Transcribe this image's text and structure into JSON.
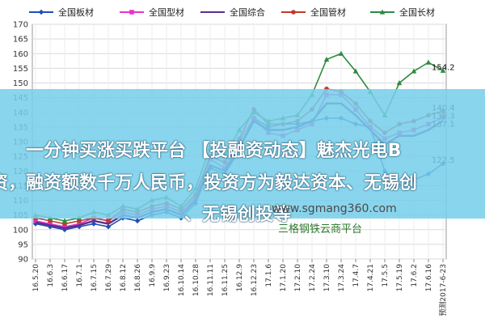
{
  "chart_data": {
    "type": "line",
    "ylim": [
      90,
      170
    ],
    "yticks": [
      90,
      95,
      100,
      105,
      110,
      115,
      120,
      125,
      130,
      135,
      140,
      145,
      150,
      155,
      160,
      165,
      170
    ],
    "xlabels": [
      "16.5.20",
      "16.6.3",
      "16.6.17",
      "16.7.1",
      "16.7.15",
      "16.7.29",
      "16.8.12",
      "16.8.26",
      "16.9.9",
      "16.9.23",
      "16.10.14",
      "16.10.28",
      "16.11.11",
      "16.11.25",
      "16.12.9",
      "16.12.23",
      "17.1.6",
      "17.1.20",
      "17.2.10",
      "17.2.24",
      "17.3.10",
      "17.3.24",
      "17.4.7",
      "17.4.21",
      "17.5.5",
      "17.5.19",
      "17.6.2",
      "17.6.16",
      "预测2017-6-23"
    ],
    "legend_position": "top",
    "grid": true,
    "series": [
      {
        "name": "全国板材",
        "color": "#1f4fb3",
        "marker": "diamond",
        "values": [
          102,
          101,
          100,
          101,
          102,
          101,
          104,
          103,
          105,
          106,
          104,
          109,
          121,
          119,
          127,
          138,
          135,
          136,
          136,
          137,
          138,
          138,
          136,
          135,
          120,
          115,
          117,
          119,
          122.5
        ]
      },
      {
        "name": "全国型材",
        "color": "#e633cc",
        "marker": "square",
        "values": [
          103,
          102,
          101,
          102,
          104,
          103,
          106,
          105,
          107,
          108,
          106,
          111,
          124,
          121,
          130,
          138,
          133,
          132,
          134,
          136,
          146,
          146,
          141,
          135,
          131,
          133,
          134,
          136,
          138.3
        ]
      },
      {
        "name": "全国综合",
        "color": "#5b2e8e",
        "marker": "line",
        "values": [
          102.5,
          101.5,
          100.5,
          101.5,
          103,
          102,
          105,
          104,
          106,
          107,
          105,
          110,
          122,
          120,
          128,
          137,
          134,
          134,
          135,
          137,
          143,
          143,
          139,
          134,
          129,
          132,
          132,
          134,
          137.1
        ]
      },
      {
        "name": "全国管材",
        "color": "#c0392b",
        "marker": "circle",
        "values": [
          104,
          103,
          102,
          103,
          104,
          103,
          107,
          106,
          108,
          109,
          107,
          112,
          125,
          123,
          131,
          141,
          136,
          136,
          137,
          141,
          148,
          147,
          143,
          137,
          133,
          136,
          137,
          139,
          140.4
        ]
      },
      {
        "name": "全国长材",
        "color": "#2e8b3e",
        "marker": "triangle",
        "values": [
          105,
          104,
          103,
          104,
          106,
          105,
          108,
          107,
          110,
          111,
          108,
          114,
          128,
          125,
          134,
          140,
          137,
          138,
          139,
          146,
          158,
          160,
          154,
          147,
          139,
          150,
          154,
          157,
          154.2
        ]
      }
    ],
    "end_labels": [
      "154.2",
      "140.4",
      "138.3",
      "137.1",
      "122.5"
    ]
  },
  "overlay": {
    "line1": "一分钟买涨买跌平台 【投融资动态】魅杰光电B",
    "line2": "资，融资额数千万人民币，投资方为毅达资本、无锡创",
    "line3": "、无锡创投等"
  },
  "watermark": {
    "site": "www.sgmang360.com",
    "name": "三格钢铁云商平台"
  }
}
